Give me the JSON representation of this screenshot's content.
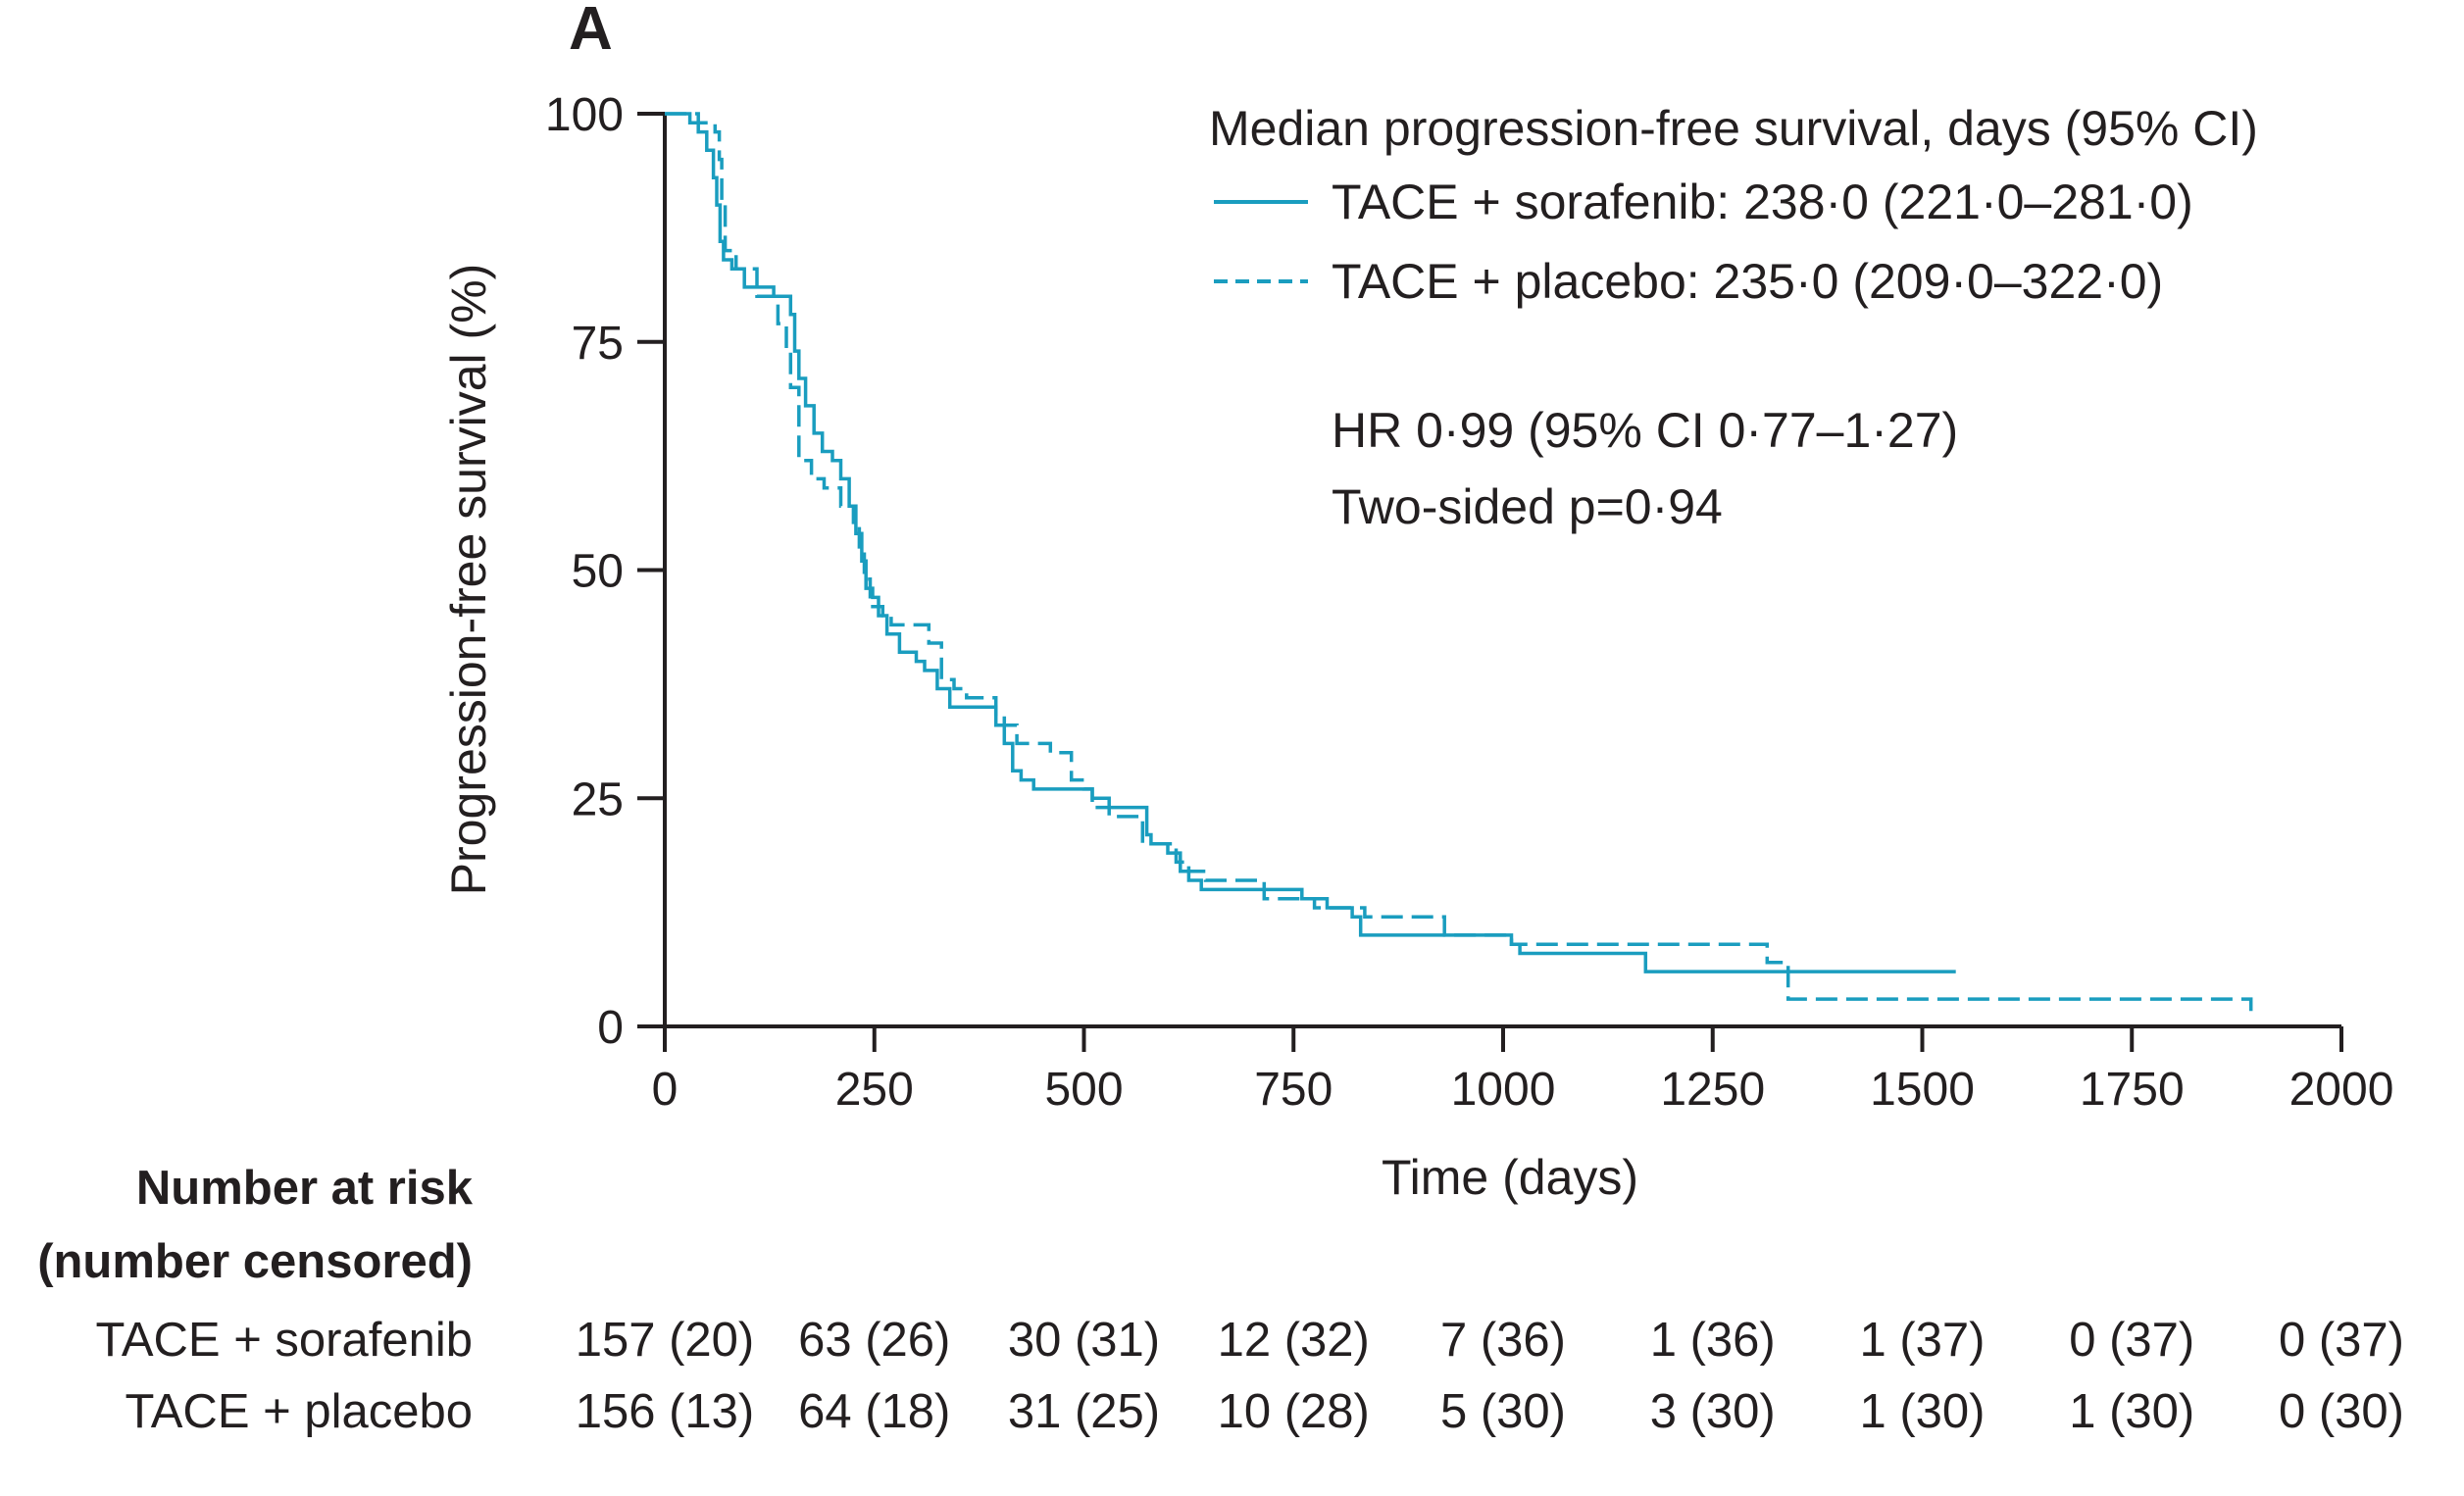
{
  "chart_data": {
    "type": "line",
    "panel_label": "A",
    "xlabel": "Time (days)",
    "ylabel": "Progression-free survival (%)",
    "xlim": [
      0,
      2000
    ],
    "ylim": [
      0,
      100
    ],
    "xticks": [
      0,
      250,
      500,
      750,
      1000,
      1250,
      1500,
      1750,
      2000
    ],
    "yticks": [
      0,
      25,
      50,
      75,
      100
    ],
    "xtick_labels": [
      "0",
      "250",
      "500",
      "750",
      "1000",
      "1250",
      "1500",
      "1750",
      "2000"
    ],
    "ytick_labels": [
      "0",
      "25",
      "50",
      "75",
      "100"
    ],
    "grid": false,
    "legend": {
      "placement": "top-right",
      "title": "Median progression-free survival, days (95% CI)",
      "entries": [
        "TACE + sorafenib: 238·0 (221·0–281·0)",
        "TACE + placebo: 235·0 (209·0–322·0)"
      ]
    },
    "annotations": [
      "HR 0·99 (95% CI 0·77–1·27)",
      "Two-sided p=0·94"
    ],
    "series": [
      {
        "name": "TACE + sorafenib",
        "line_style": "solid",
        "color": "#1a9dbf",
        "steps": [
          [
            0,
            100
          ],
          [
            20,
            100
          ],
          [
            30,
            99
          ],
          [
            40,
            98
          ],
          [
            50,
            96
          ],
          [
            58,
            93
          ],
          [
            62,
            90
          ],
          [
            66,
            86
          ],
          [
            70,
            84
          ],
          [
            80,
            83
          ],
          [
            95,
            81
          ],
          [
            130,
            80
          ],
          [
            150,
            78
          ],
          [
            155,
            74
          ],
          [
            160,
            71
          ],
          [
            168,
            68
          ],
          [
            178,
            65
          ],
          [
            188,
            63
          ],
          [
            200,
            62
          ],
          [
            210,
            60
          ],
          [
            220,
            57
          ],
          [
            228,
            54
          ],
          [
            235,
            51
          ],
          [
            240,
            48
          ],
          [
            248,
            47
          ],
          [
            255,
            45
          ],
          [
            265,
            43
          ],
          [
            280,
            41
          ],
          [
            300,
            40
          ],
          [
            310,
            39
          ],
          [
            325,
            37
          ],
          [
            340,
            35
          ],
          [
            385,
            35
          ],
          [
            395,
            33
          ],
          [
            405,
            31
          ],
          [
            415,
            28
          ],
          [
            425,
            27
          ],
          [
            440,
            26
          ],
          [
            490,
            26
          ],
          [
            510,
            25
          ],
          [
            530,
            24
          ],
          [
            570,
            24
          ],
          [
            575,
            21
          ],
          [
            580,
            20
          ],
          [
            600,
            19
          ],
          [
            615,
            17
          ],
          [
            625,
            16
          ],
          [
            640,
            15
          ],
          [
            730,
            15
          ],
          [
            760,
            14
          ],
          [
            790,
            13
          ],
          [
            820,
            12
          ],
          [
            830,
            10
          ],
          [
            1000,
            10
          ],
          [
            1010,
            9
          ],
          [
            1020,
            8
          ],
          [
            1160,
            8
          ],
          [
            1170,
            6
          ],
          [
            1540,
            6
          ]
        ]
      },
      {
        "name": "TACE + placebo",
        "line_style": "dashed",
        "color": "#1a9dbf",
        "steps": [
          [
            0,
            100
          ],
          [
            25,
            100
          ],
          [
            40,
            99
          ],
          [
            60,
            98
          ],
          [
            65,
            95
          ],
          [
            68,
            90
          ],
          [
            72,
            85
          ],
          [
            85,
            83
          ],
          [
            110,
            80
          ],
          [
            135,
            77
          ],
          [
            145,
            74
          ],
          [
            150,
            70
          ],
          [
            160,
            62
          ],
          [
            175,
            60
          ],
          [
            190,
            59
          ],
          [
            210,
            57
          ],
          [
            225,
            55
          ],
          [
            232,
            52
          ],
          [
            238,
            49
          ],
          [
            245,
            46
          ],
          [
            260,
            45
          ],
          [
            270,
            44
          ],
          [
            300,
            44
          ],
          [
            315,
            42
          ],
          [
            330,
            38
          ],
          [
            345,
            37
          ],
          [
            360,
            36
          ],
          [
            390,
            36
          ],
          [
            395,
            34
          ],
          [
            405,
            33
          ],
          [
            420,
            31
          ],
          [
            450,
            31
          ],
          [
            460,
            30
          ],
          [
            485,
            27
          ],
          [
            500,
            26
          ],
          [
            510,
            24
          ],
          [
            530,
            23
          ],
          [
            565,
            23
          ],
          [
            570,
            20
          ],
          [
            600,
            20
          ],
          [
            610,
            18
          ],
          [
            625,
            17
          ],
          [
            645,
            16
          ],
          [
            700,
            16
          ],
          [
            715,
            14
          ],
          [
            760,
            14
          ],
          [
            775,
            13
          ],
          [
            820,
            13
          ],
          [
            835,
            12
          ],
          [
            920,
            12
          ],
          [
            930,
            10
          ],
          [
            1000,
            10
          ],
          [
            1010,
            9
          ],
          [
            1310,
            9
          ],
          [
            1315,
            7
          ],
          [
            1340,
            3
          ],
          [
            1890,
            3
          ],
          [
            1892,
            1
          ]
        ]
      }
    ],
    "risk_table": {
      "header": [
        "Number at risk",
        "(number censored)"
      ],
      "timepoints": [
        0,
        250,
        500,
        750,
        1000,
        1250,
        1500,
        1750,
        2000
      ],
      "rows": [
        {
          "label": "TACE + sorafenib",
          "values": [
            "157 (20)",
            "63 (26)",
            "30 (31)",
            "12 (32)",
            "7 (36)",
            "1 (36)",
            "1 (37)",
            "0 (37)",
            "0 (37)"
          ]
        },
        {
          "label": "TACE + placebo",
          "values": [
            "156 (13)",
            "64 (18)",
            "31 (25)",
            "10 (28)",
            "5 (30)",
            "3 (30)",
            "1 (30)",
            "1 (30)",
            "0 (30)"
          ]
        }
      ]
    }
  }
}
